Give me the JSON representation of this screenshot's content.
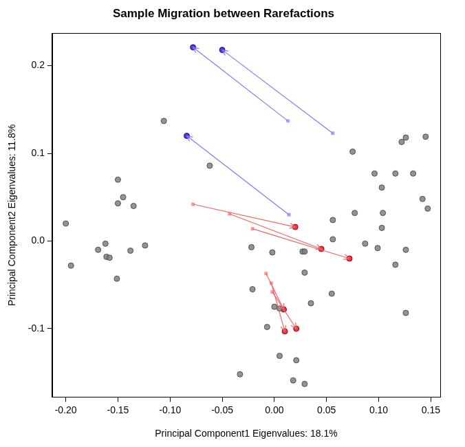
{
  "chart_data": {
    "type": "scatter",
    "title": "Sample Migration between Rarefactions",
    "x_label": "Principal Component1 Eigenvalues: 18.1%",
    "y_label": "Principal Component2 Eigenvalues: 11.8%",
    "xlim": [
      -0.213,
      0.159
    ],
    "ylim": [
      -0.178,
      0.237
    ],
    "xticks": [
      {
        "value": -0.2,
        "label": "-0.20"
      },
      {
        "value": -0.15,
        "label": "-0.15"
      },
      {
        "value": -0.1,
        "label": "-0.10"
      },
      {
        "value": -0.05,
        "label": "-0.05"
      },
      {
        "value": 0,
        "label": "0.00"
      },
      {
        "value": 0.05,
        "label": "0.05"
      },
      {
        "value": 0.1,
        "label": "0.10"
      },
      {
        "value": 0.15,
        "label": "0.15"
      }
    ],
    "yticks": [
      -0.1,
      {
        "value": 0,
        "label": "0.0"
      },
      0.1,
      0.2
    ],
    "grid": false,
    "series": [
      {
        "type": "scatter",
        "marker": "circle",
        "color": "#808080",
        "x": [
          -0.2,
          -0.195,
          -0.15,
          -0.145,
          -0.15,
          -0.135,
          -0.162,
          -0.169,
          -0.161,
          -0.158,
          -0.138,
          -0.124,
          -0.151,
          -0.106,
          -0.062,
          -0.022,
          -0.002,
          -0.021,
          -0.007,
          0.0,
          0.005,
          0.005,
          0.021,
          0.018,
          0.029,
          -0.033,
          0.027,
          0.029,
          0.029,
          0.035,
          0.055,
          0.056,
          0.056,
          0.077,
          0.075,
          0.096,
          0.103,
          0.104,
          0.103,
          0.087,
          0.099,
          0.116,
          0.122,
          0.126,
          0.133,
          0.142,
          0.147,
          0.145,
          0.116,
          0.126,
          0.126
        ],
        "y": [
          0.02,
          -0.028,
          0.07,
          0.05,
          0.043,
          0.04,
          -0.003,
          -0.01,
          -0.018,
          -0.019,
          -0.011,
          -0.005,
          -0.043,
          0.137,
          0.086,
          -0.007,
          -0.013,
          -0.055,
          -0.098,
          -0.075,
          -0.077,
          -0.131,
          -0.136,
          -0.159,
          -0.163,
          -0.152,
          -0.012,
          -0.012,
          -0.036,
          -0.071,
          -0.06,
          0.024,
          0.002,
          0.032,
          0.102,
          0.077,
          0.061,
          0.032,
          0.015,
          -0.003,
          -0.008,
          0.077,
          0.113,
          0.118,
          0.077,
          0.048,
          0.037,
          0.119,
          -0.027,
          -0.01,
          -0.082
        ]
      },
      {
        "type": "arrow",
        "color": "#7b7bff",
        "x": [
          0.013,
          0.056,
          0.014
        ],
        "y": [
          0.137,
          0.123,
          0.03
        ],
        "x_end": [
          -0.078,
          -0.05,
          -0.084
        ],
        "y_end": [
          0.221,
          0.218,
          0.12
        ]
      },
      {
        "type": "arrow",
        "color": "#f06464",
        "x": [
          -0.078,
          -0.043,
          -0.021,
          -0.008,
          -0.003,
          -0.002
        ],
        "y": [
          0.042,
          0.031,
          0.014,
          -0.037,
          -0.048,
          -0.058
        ],
        "x_end": [
          0.02,
          0.045,
          0.072,
          0.009,
          0.01,
          0.021
        ],
        "y_end": [
          0.016,
          -0.009,
          -0.02,
          -0.078,
          -0.103,
          -0.1
        ]
      },
      {
        "type": "scatter",
        "marker": "square",
        "color": "#a6a6ff",
        "x": [
          0.013,
          0.056,
          0.014
        ],
        "y": [
          0.137,
          0.123,
          0.03
        ]
      },
      {
        "type": "scatter",
        "marker": "square",
        "color": "#f79a9a",
        "x": [
          -0.078,
          -0.043,
          -0.021,
          -0.008,
          -0.003,
          -0.002
        ],
        "y": [
          0.042,
          0.031,
          0.014,
          -0.037,
          -0.048,
          -0.058
        ]
      },
      {
        "type": "scatter",
        "marker": "circle",
        "color": "#3a10d8",
        "x": [
          -0.078,
          -0.05,
          -0.084
        ],
        "y": [
          0.221,
          0.218,
          0.12
        ]
      },
      {
        "type": "scatter",
        "marker": "circle",
        "color": "#e8141e",
        "x": [
          0.02,
          0.045,
          0.072,
          0.009,
          0.01,
          0.021
        ],
        "y": [
          0.016,
          -0.009,
          -0.02,
          -0.078,
          -0.103,
          -0.1
        ]
      }
    ]
  }
}
